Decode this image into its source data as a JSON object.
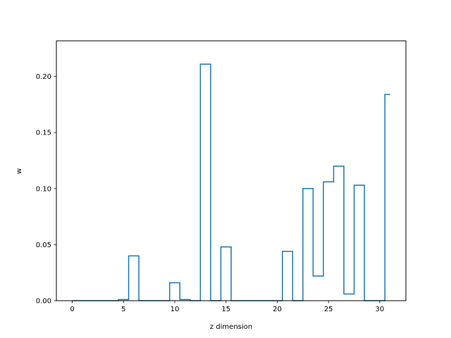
{
  "chart_data": {
    "type": "line",
    "drawstyle": "steps-mid",
    "title": "",
    "xlabel": "z dimension",
    "ylabel": "w",
    "xlim": [
      -1.55,
      32.55
    ],
    "ylim": [
      0,
      0.2318
    ],
    "xticks": [
      0,
      5,
      10,
      15,
      20,
      25,
      30
    ],
    "yticks": [
      0.0,
      0.05,
      0.1,
      0.15,
      0.2
    ],
    "ytick_labels": [
      "0.00",
      "0.05",
      "0.10",
      "0.15",
      "0.20"
    ],
    "grid": false,
    "line_color": "#1f77b4",
    "series": [
      {
        "x": [
          0,
          1,
          2,
          3,
          4,
          5,
          6,
          7,
          8,
          9,
          10,
          11,
          12,
          13,
          14,
          15,
          16,
          17,
          18,
          19,
          20,
          21,
          22,
          23,
          24,
          25,
          26,
          27,
          28,
          29,
          30,
          31
        ],
        "values": [
          0,
          0,
          0,
          0,
          0,
          0.001,
          0.04,
          0,
          0,
          0,
          0.016,
          0.001,
          0,
          0.211,
          0,
          0.048,
          0,
          0,
          0,
          0,
          0,
          0.044,
          0,
          0.1,
          0.022,
          0.106,
          0.12,
          0.006,
          0.103,
          0,
          0,
          0.184
        ]
      }
    ]
  }
}
